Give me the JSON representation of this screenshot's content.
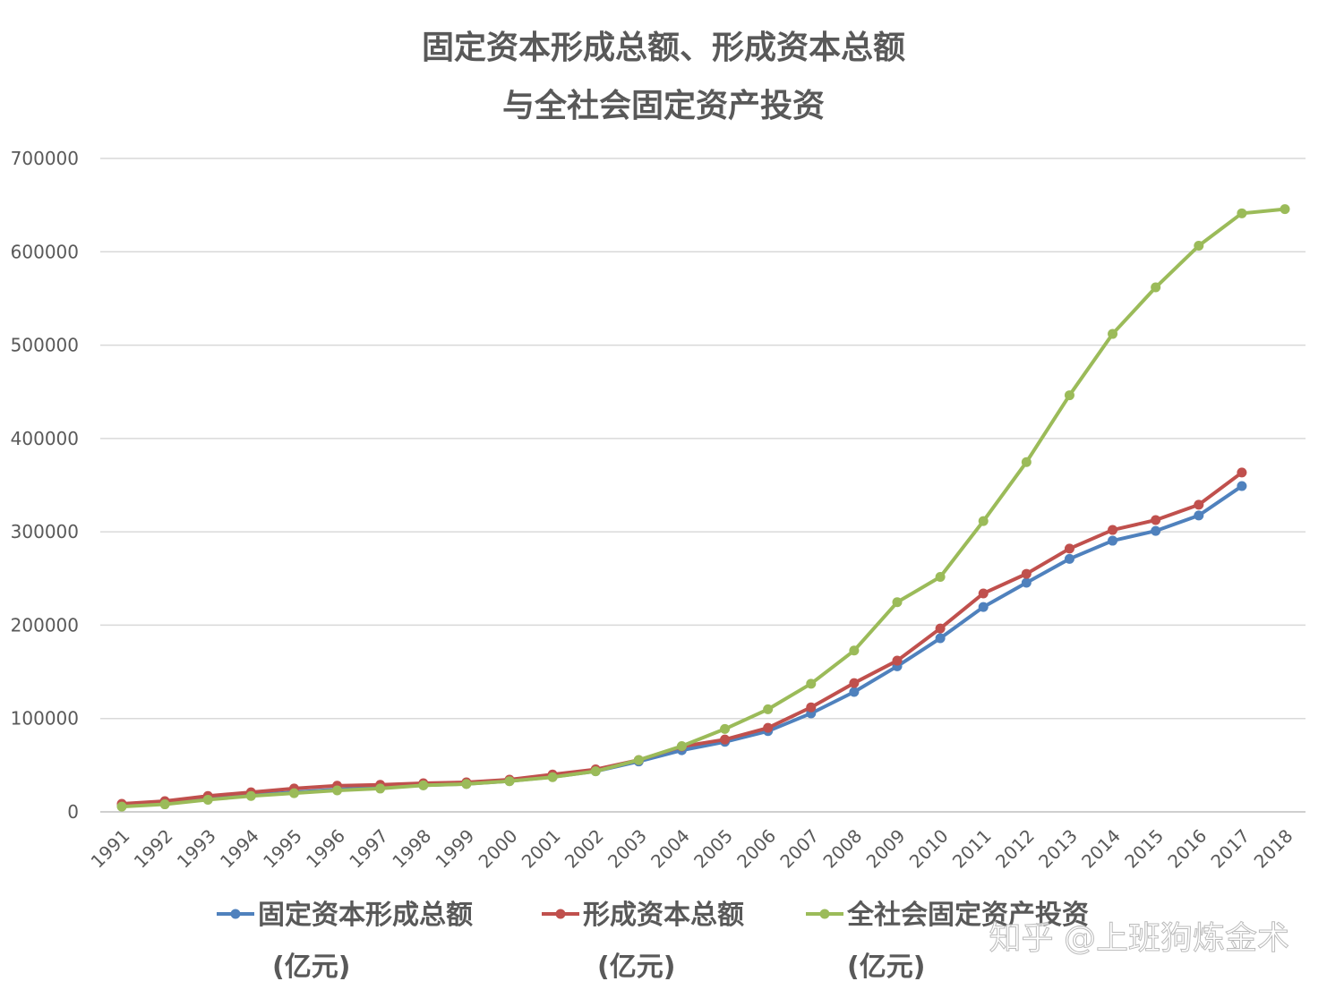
{
  "chart_data": {
    "type": "line",
    "title": [
      "固定资本形成总额、形成资本总额",
      "与全社会固定资产投资"
    ],
    "xlabel": "",
    "ylabel": "",
    "ylim": [
      0,
      700000
    ],
    "yticks": [
      0,
      100000,
      200000,
      300000,
      400000,
      500000,
      600000,
      700000
    ],
    "grid": true,
    "legend_position": "bottom",
    "x": [
      "1991",
      "1992",
      "1993",
      "1994",
      "1995",
      "1996",
      "1997",
      "1998",
      "1999",
      "2000",
      "2001",
      "2002",
      "2003",
      "2004",
      "2005",
      "2006",
      "2007",
      "2008",
      "2009",
      "2010",
      "2011",
      "2012",
      "2013",
      "2014",
      "2015",
      "2016",
      "2017",
      "2018"
    ],
    "series": [
      {
        "name": "固定资本形成总额",
        "unit": "(亿元)",
        "color": "#4F81BD",
        "values": [
          6500,
          9500,
          14000,
          18000,
          21000,
          24000,
          26000,
          28500,
          30000,
          33000,
          37500,
          43500,
          54000,
          66000,
          75000,
          86500,
          105500,
          128500,
          156000,
          186000,
          219500,
          245500,
          271000,
          290500,
          301000,
          317500,
          349000,
          null
        ]
      },
      {
        "name": "形成资本总额",
        "unit": "(亿元)",
        "color": "#C0504D",
        "values": [
          8600,
          11500,
          17000,
          21000,
          25000,
          28000,
          29000,
          30700,
          31600,
          34500,
          40000,
          45500,
          55500,
          70000,
          77500,
          90000,
          112000,
          138000,
          162000,
          196500,
          234000,
          255000,
          282000,
          302000,
          312600,
          329000,
          363500,
          null
        ]
      },
      {
        "name": "全社会固定资产投资",
        "unit": "(亿元)",
        "color": "#9BBB59",
        "values": [
          5600,
          8100,
          13000,
          17000,
          20000,
          23000,
          25000,
          28400,
          29800,
          32900,
          37200,
          43500,
          55500,
          70500,
          88800,
          109900,
          137300,
          172800,
          224600,
          251700,
          311500,
          374700,
          446300,
          512000,
          561900,
          606500,
          641200,
          645700
        ]
      }
    ]
  },
  "watermark": "知乎 @上班狗炼金术"
}
